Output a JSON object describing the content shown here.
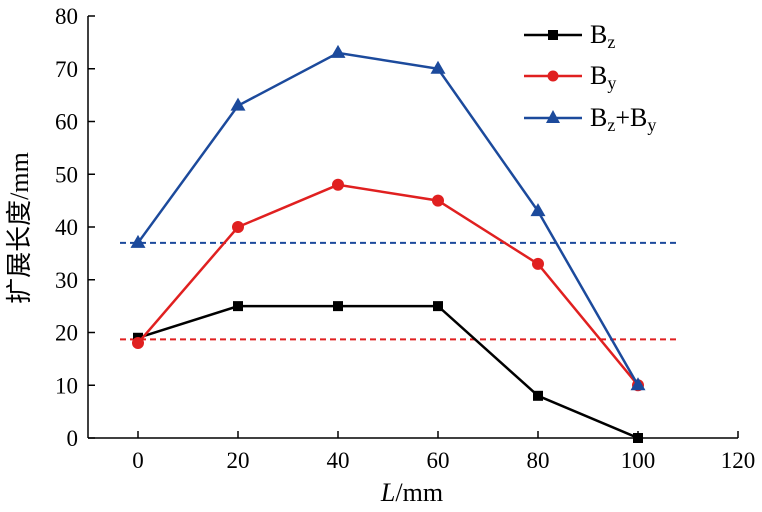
{
  "chart_data": {
    "type": "line",
    "x": [
      0,
      20,
      40,
      60,
      80,
      100
    ],
    "xlim": [
      -10,
      120
    ],
    "ylim": [
      0,
      80
    ],
    "xticks": [
      "0",
      "20",
      "40",
      "60",
      "80",
      "100",
      "120"
    ],
    "yticks": [
      "0",
      "10",
      "20",
      "30",
      "40",
      "50",
      "60",
      "70",
      "80"
    ],
    "xlabel_italic": "L",
    "xlabel_unit": "/mm",
    "ylabel": "扩展长度/mm",
    "grid": false,
    "legend_position": "top-right",
    "series": [
      {
        "name_base": "B",
        "name_sub": "z",
        "color": "#000000",
        "marker": "square",
        "values": [
          19,
          25,
          25,
          25,
          8,
          0
        ]
      },
      {
        "name_base": "B",
        "name_sub": "y",
        "color": "#e02020",
        "marker": "circle",
        "values": [
          18,
          40,
          48,
          45,
          33,
          10
        ]
      },
      {
        "name_base": "B",
        "name_sub": "z",
        "name_mid": "+B",
        "name_sub2": "y",
        "color": "#1c4a9c",
        "marker": "triangle",
        "values": [
          37,
          63,
          73,
          70,
          43,
          10
        ]
      }
    ],
    "reference_lines": [
      {
        "y": 37,
        "color": "#1c4a9c",
        "style": "dashed"
      },
      {
        "y": 18.7,
        "color": "#e02020",
        "style": "dashed"
      }
    ]
  }
}
